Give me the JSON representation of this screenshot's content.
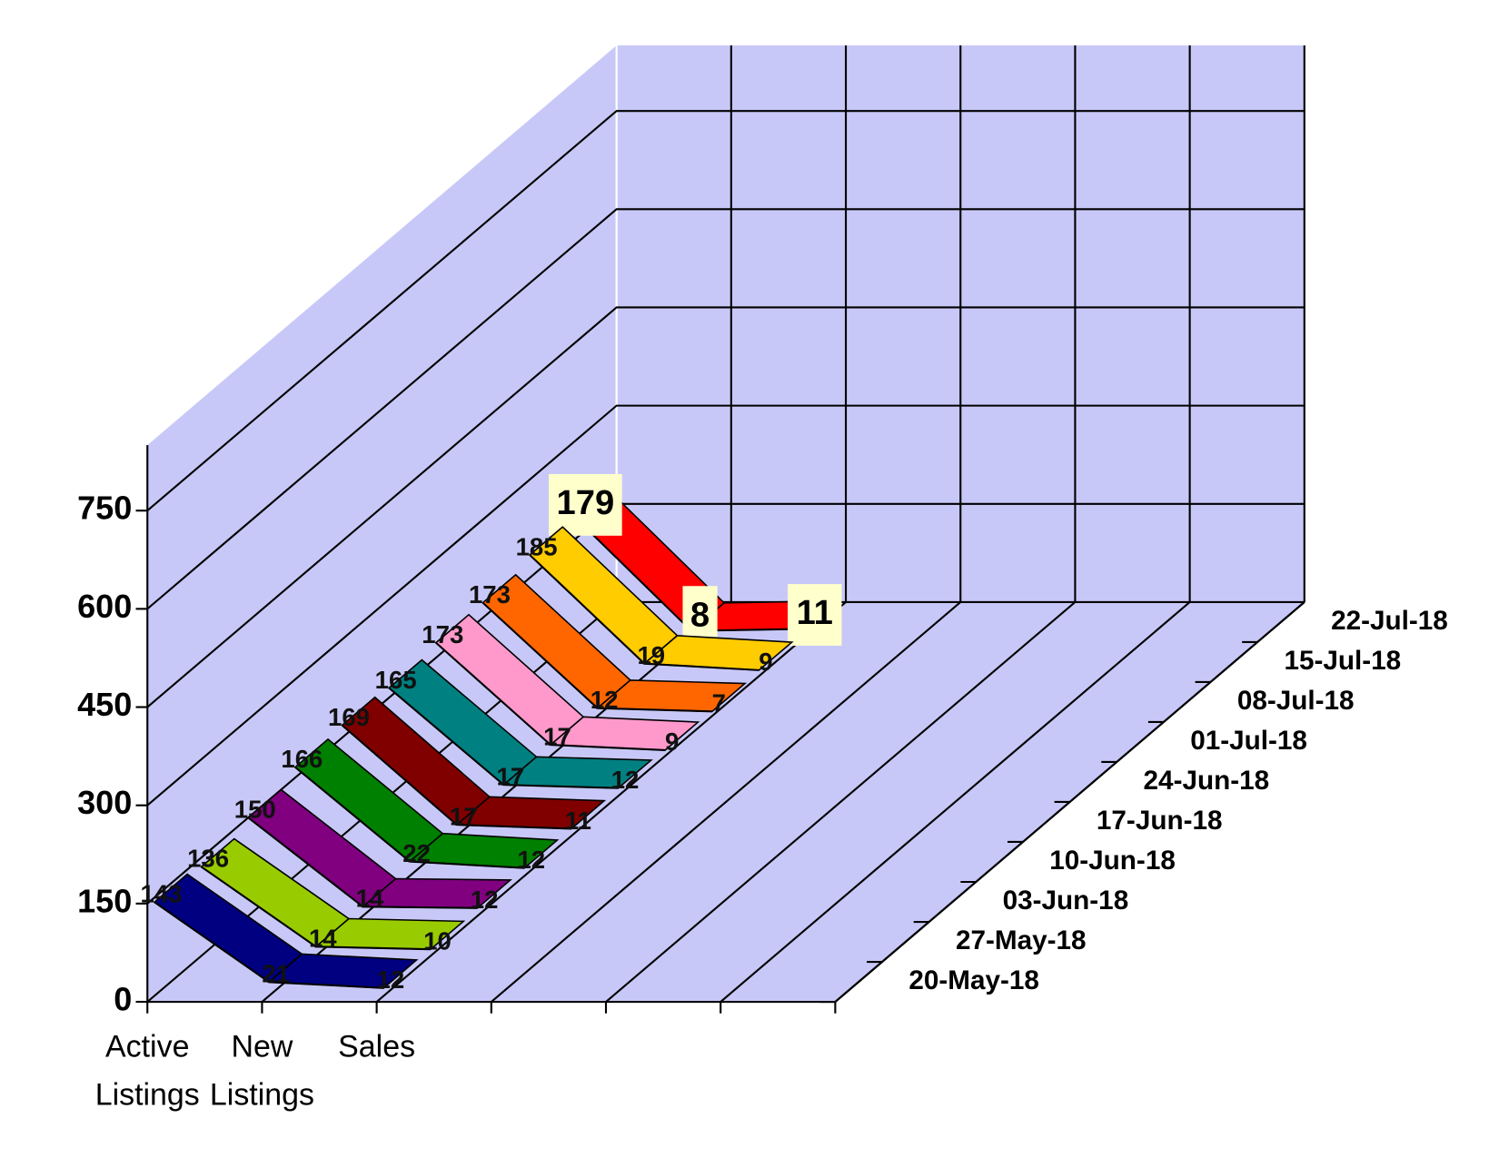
{
  "chart_data": {
    "type": "line3d",
    "categories": [
      "Active Listings",
      "New Listings",
      "Sales"
    ],
    "series": [
      {
        "name": "20-May-18",
        "color": "#000080",
        "values": [
          143,
          21,
          12
        ]
      },
      {
        "name": "27-May-18",
        "color": "#99cc00",
        "values": [
          136,
          14,
          10
        ]
      },
      {
        "name": "03-Jun-18",
        "color": "#800080",
        "values": [
          150,
          14,
          12
        ]
      },
      {
        "name": "10-Jun-18",
        "color": "#008000",
        "values": [
          166,
          22,
          12
        ]
      },
      {
        "name": "17-Jun-18",
        "color": "#800000",
        "values": [
          169,
          17,
          11
        ]
      },
      {
        "name": "24-Jun-18",
        "color": "#008080",
        "values": [
          165,
          17,
          12
        ]
      },
      {
        "name": "01-Jul-18",
        "color": "#ff99cc",
        "values": [
          173,
          17,
          9
        ]
      },
      {
        "name": "08-Jul-18",
        "color": "#ff6600",
        "values": [
          173,
          12,
          7
        ]
      },
      {
        "name": "15-Jul-18",
        "color": "#ffcc00",
        "values": [
          185,
          19,
          9
        ]
      },
      {
        "name": "22-Jul-18",
        "color": "#ff0000",
        "values": [
          179,
          8,
          11
        ]
      }
    ],
    "ylim": [
      0,
      850
    ],
    "yticks": [
      0,
      150,
      300,
      450,
      600,
      750
    ],
    "grid": true,
    "wall_color": "#c8c8f8"
  }
}
